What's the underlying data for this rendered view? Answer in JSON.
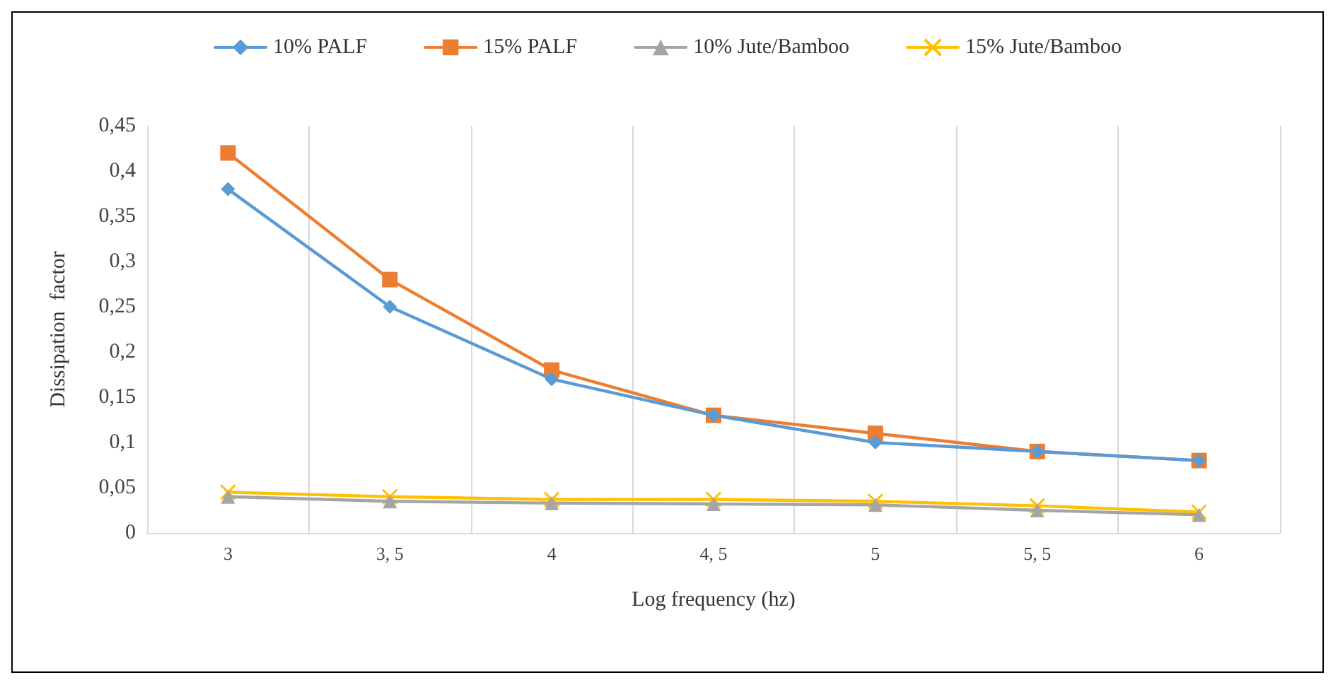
{
  "chart_data": {
    "type": "line",
    "xlabel": "Log frequency (hz)",
    "ylabel": "Dissipation  factor",
    "categories": [
      "3",
      "3, 5",
      "4",
      "4, 5",
      "5",
      "5, 5",
      "6"
    ],
    "series": [
      {
        "name": "10% PALF",
        "color": "#5b9bd5",
        "marker": "diamond",
        "values": [
          0.38,
          0.25,
          0.17,
          0.13,
          0.1,
          0.09,
          0.08
        ]
      },
      {
        "name": "15% PALF",
        "color": "#ed7d31",
        "marker": "square",
        "values": [
          0.42,
          0.28,
          0.18,
          0.13,
          0.11,
          0.09,
          0.08
        ]
      },
      {
        "name": "10% Jute/Bamboo",
        "color": "#a5a5a5",
        "marker": "triangle",
        "values": [
          0.04,
          0.035,
          0.033,
          0.032,
          0.031,
          0.025,
          0.02
        ]
      },
      {
        "name": "15% Jute/Bamboo",
        "color": "#ffc000",
        "marker": "cross",
        "values": [
          0.045,
          0.04,
          0.037,
          0.037,
          0.035,
          0.03,
          0.023
        ]
      }
    ],
    "ylim": [
      0,
      0.45
    ],
    "yticks": [
      0,
      {
        "value": 0.05,
        "label": "0,05"
      },
      {
        "value": 0.1,
        "label": "0,1"
      },
      {
        "value": 0.15,
        "label": "0,15"
      },
      {
        "value": 0.2,
        "label": "0,2"
      },
      {
        "value": 0.25,
        "label": "0,25"
      },
      {
        "value": 0.3,
        "label": "0,3"
      },
      {
        "value": 0.35,
        "label": "0,35"
      },
      {
        "value": 0.4,
        "label": "0,4"
      },
      {
        "value": 0.45,
        "label": "0,45"
      }
    ],
    "grid": "x",
    "legend": "top",
    "line_style": "solid"
  }
}
